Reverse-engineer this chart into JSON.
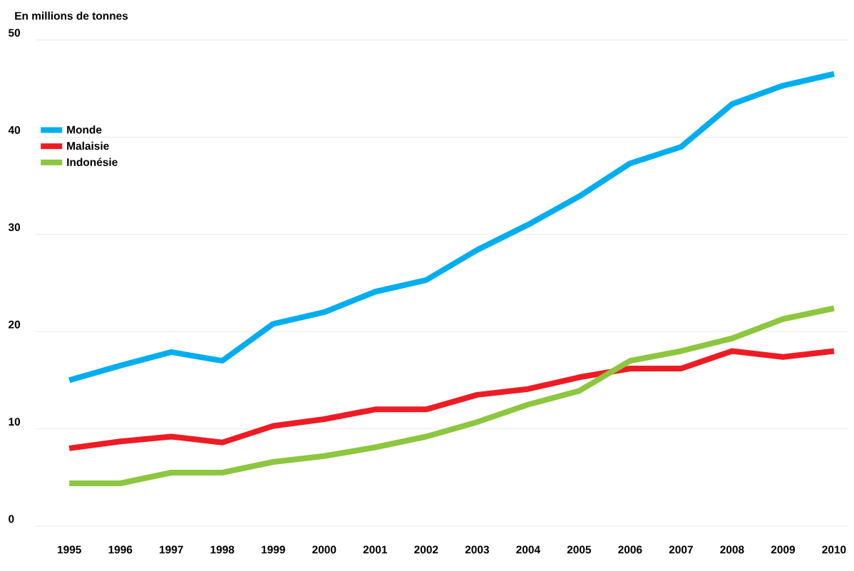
{
  "chart_data": {
    "type": "line",
    "ylabel": "En millions de tonnes",
    "categories": [
      "1995",
      "1996",
      "1997",
      "1998",
      "1999",
      "2000",
      "2001",
      "2002",
      "2003",
      "2004",
      "2005",
      "2006",
      "2007",
      "2008",
      "2009",
      "2010"
    ],
    "series": [
      {
        "name": "Monde",
        "color": "#00aeef",
        "values": [
          15.0,
          16.5,
          17.9,
          17.0,
          20.8,
          22.0,
          24.1,
          25.3,
          28.4,
          31.0,
          33.9,
          37.3,
          39.0,
          43.4,
          45.3,
          46.5
        ]
      },
      {
        "name": "Malaisie",
        "color": "#ed1c24",
        "values": [
          8.0,
          8.7,
          9.2,
          8.6,
          10.3,
          11.0,
          12.0,
          12.0,
          13.5,
          14.1,
          15.3,
          16.2,
          16.2,
          18.0,
          17.4,
          18.0
        ]
      },
      {
        "name": "Indonésie",
        "color": "#8dc63f",
        "values": [
          4.4,
          4.4,
          5.5,
          5.5,
          6.6,
          7.2,
          8.1,
          9.2,
          10.7,
          12.5,
          13.9,
          17.0,
          18.0,
          19.3,
          21.3,
          22.4
        ]
      }
    ],
    "ylim": [
      0,
      50
    ],
    "yticks": [
      0,
      10,
      20,
      30,
      40,
      50
    ],
    "grid": "y",
    "legend": "top left",
    "marker": "none",
    "line_style": "solid"
  }
}
